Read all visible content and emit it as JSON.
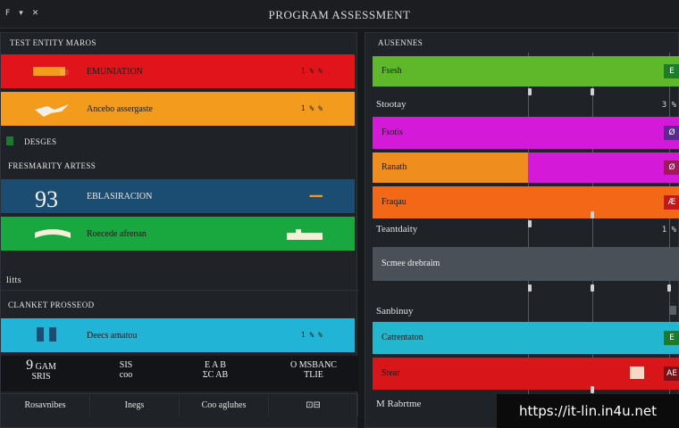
{
  "window": {
    "title": "PROGRAM ASSESSMENT",
    "controls": [
      "F",
      "▾",
      "✕"
    ]
  },
  "left": {
    "section1_title": "TEST ENTITY MAROS",
    "bars1": [
      {
        "label": "EMUNIATION",
        "value": "1 % %",
        "color": "#e0141a"
      },
      {
        "label": "Ancebo assergaste",
        "value": "1 % %",
        "color": "#f29b1c"
      }
    ],
    "tag_row": "DESGES",
    "section2_title": "FRESMARITY ARTESS",
    "kpi": {
      "value": "93",
      "label": "EBLASIRACION",
      "value_suffix": "▬▬▬",
      "color": "#1b4d73"
    },
    "bar_green": {
      "label": "Roecede afrenan",
      "color": "#19a840"
    },
    "sub_tag": "litts",
    "section3_title": "CLANKET PROSSEOD",
    "bar_cyan": {
      "label": "Deecs amatou",
      "value": "1 % %",
      "color": "#21b4d6"
    },
    "stats": [
      {
        "big": "9",
        "line1": "GAM",
        "line2": "SRIS"
      },
      {
        "big": "",
        "line1": "SIS",
        "line2": "coo"
      },
      {
        "big": "",
        "line1": "E A B",
        "line2": "ΣC AB"
      },
      {
        "big": "",
        "line1": "O MSBANC",
        "line2": "TLIE"
      }
    ],
    "footer_tabs": [
      "Rosavnibes",
      "Inegs",
      "Coo agluhes",
      "⊡⊟"
    ]
  },
  "right": {
    "section_title": "AUSENNES",
    "rows": [
      {
        "type": "bar",
        "label": "Fsesh",
        "color": "#5eb82a",
        "end_color": "#1e7d2a",
        "end": "E"
      },
      {
        "type": "text",
        "label": "Stootay",
        "value": "3 %"
      },
      {
        "type": "bar",
        "label": "Fsotis",
        "color": "#d41ad8",
        "end_color": "#5a2a90",
        "end": "Ø"
      },
      {
        "type": "bar-split",
        "label": "Ranath",
        "color": "#ef8d1e",
        "color2": "#d41ad8",
        "end_color": "#a01a5a",
        "end": "Ø"
      },
      {
        "type": "bar",
        "label": "Fraqau",
        "color": "#f36816",
        "end_color": "#c41818",
        "end": "Æ"
      },
      {
        "type": "text",
        "label": "Teantdaity",
        "value": "1 %"
      },
      {
        "type": "grey",
        "label": "Scmee drebraim",
        "color": "#4a5058"
      },
      {
        "type": "text",
        "label": "Sanbinuy",
        "value": ""
      },
      {
        "type": "bar",
        "label": "Catrentaton",
        "color": "#22b6cf",
        "end_color": "#1c7a2c",
        "end": "E"
      },
      {
        "type": "bar",
        "label": "Stear",
        "color": "#d81518",
        "end_color": "#7a1018",
        "end": "AE"
      },
      {
        "type": "text",
        "label": "Rabrtme",
        "value": "M"
      }
    ]
  },
  "watermark": "https://it-lin.in4u.net"
}
